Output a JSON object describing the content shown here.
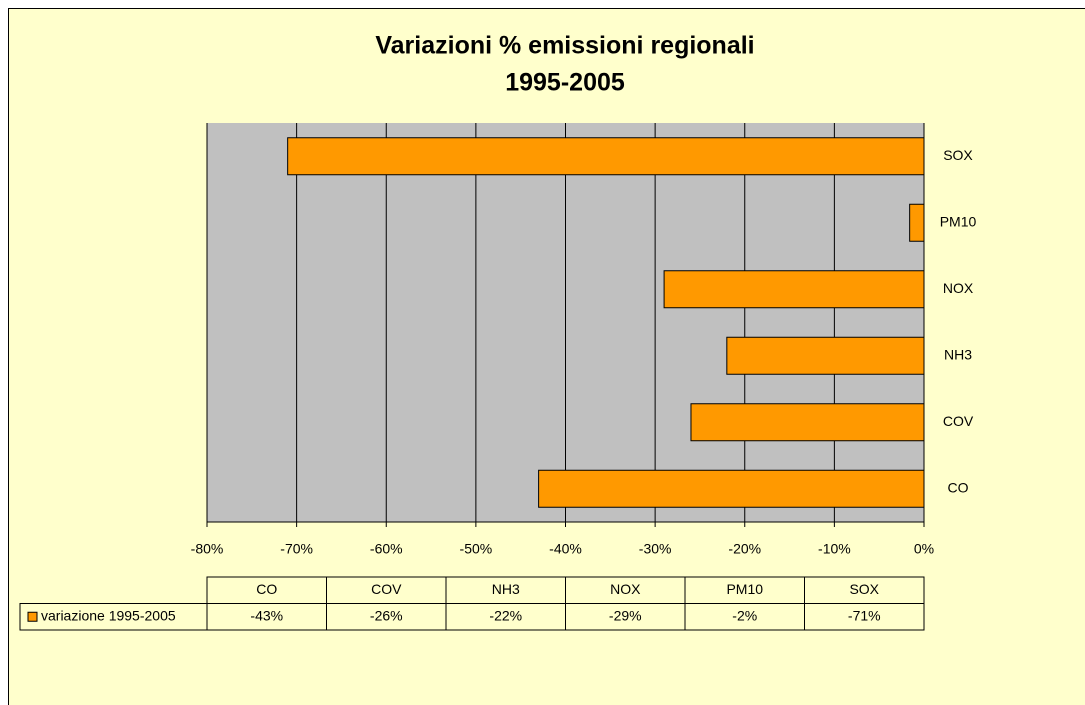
{
  "chart_data": {
    "type": "bar",
    "orientation": "horizontal",
    "title": "Variazioni % emissioni regionali",
    "subtitle": "1995-2005",
    "categories": [
      "CO",
      "COV",
      "NH3",
      "NOX",
      "PM10",
      "SOX"
    ],
    "series": [
      {
        "name": "variazione 1995-2005",
        "color": "#ff9900",
        "values": [
          -43,
          -26,
          -22,
          -29,
          -1.6,
          -71
        ],
        "value_labels": [
          "-43%",
          "-26%",
          "-22%",
          "-29%",
          "-2%",
          "-71%"
        ]
      }
    ],
    "xlim": [
      -80,
      0
    ],
    "xticks": [
      {
        "value": -80,
        "label": "-80%"
      },
      {
        "value": -70,
        "label": "-70%"
      },
      {
        "value": -60,
        "label": "-60%"
      },
      {
        "value": -50,
        "label": "-50%"
      },
      {
        "value": -40,
        "label": "-40%"
      },
      {
        "value": -30,
        "label": "-30%"
      },
      {
        "value": -20,
        "label": "-20%"
      },
      {
        "value": -10,
        "label": "-10%"
      },
      {
        "value": 0,
        "label": "0%"
      }
    ],
    "grid": true,
    "data_table": true
  }
}
